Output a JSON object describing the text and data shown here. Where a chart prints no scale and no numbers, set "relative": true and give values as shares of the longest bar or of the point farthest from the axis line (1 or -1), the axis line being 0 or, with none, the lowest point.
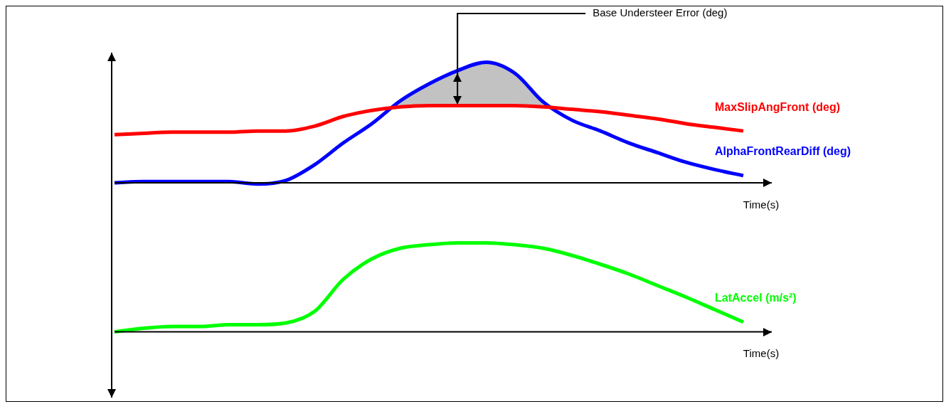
{
  "chart_data": [
    {
      "type": "line",
      "relative": true,
      "marker": "none",
      "xlabel": "Time(s)",
      "annotations": [
        "Base Understeer Error (deg)"
      ],
      "categories": [
        null,
        null,
        null,
        null,
        null,
        null,
        null,
        null,
        null,
        null,
        null,
        null,
        null,
        null,
        null,
        null,
        null,
        null,
        null,
        null,
        null,
        null,
        null
      ],
      "series": [
        {
          "name": "MaxSlipAngFront (deg)",
          "color": "#ff0000",
          "values": [
            0.4,
            0.41,
            0.42,
            0.42,
            0.42,
            0.43,
            0.43,
            0.47,
            0.55,
            0.6,
            0.63,
            0.64,
            0.64,
            0.64,
            0.64,
            0.63,
            0.61,
            0.59,
            0.56,
            0.53,
            0.49,
            0.46,
            0.43
          ]
        },
        {
          "name": "AlphaFrontRearDiff (deg)",
          "color": "#0000ff",
          "values": [
            0,
            0.01,
            0.01,
            0.01,
            0.01,
            -0.01,
            0.02,
            0.15,
            0.33,
            0.49,
            0.68,
            0.82,
            0.93,
            1,
            0.91,
            0.67,
            0.52,
            0.43,
            0.33,
            0.25,
            0.17,
            0.11,
            0.06
          ]
        }
      ]
    },
    {
      "type": "line",
      "relative": true,
      "marker": "none",
      "xlabel": "Time(s)",
      "categories": [
        null,
        null,
        null,
        null,
        null,
        null,
        null,
        null,
        null,
        null,
        null,
        null,
        null,
        null,
        null,
        null,
        null,
        null,
        null,
        null,
        null,
        null,
        null
      ],
      "series": [
        {
          "name": "LatAccel (m/s²)",
          "color": "#00ff00",
          "values": [
            0,
            0.04,
            0.06,
            0.06,
            0.08,
            0.08,
            0.1,
            0.23,
            0.59,
            0.82,
            0.94,
            0.98,
            1,
            1,
            0.98,
            0.94,
            0.86,
            0.76,
            0.65,
            0.52,
            0.39,
            0.25,
            0.11
          ]
        }
      ]
    }
  ]
}
